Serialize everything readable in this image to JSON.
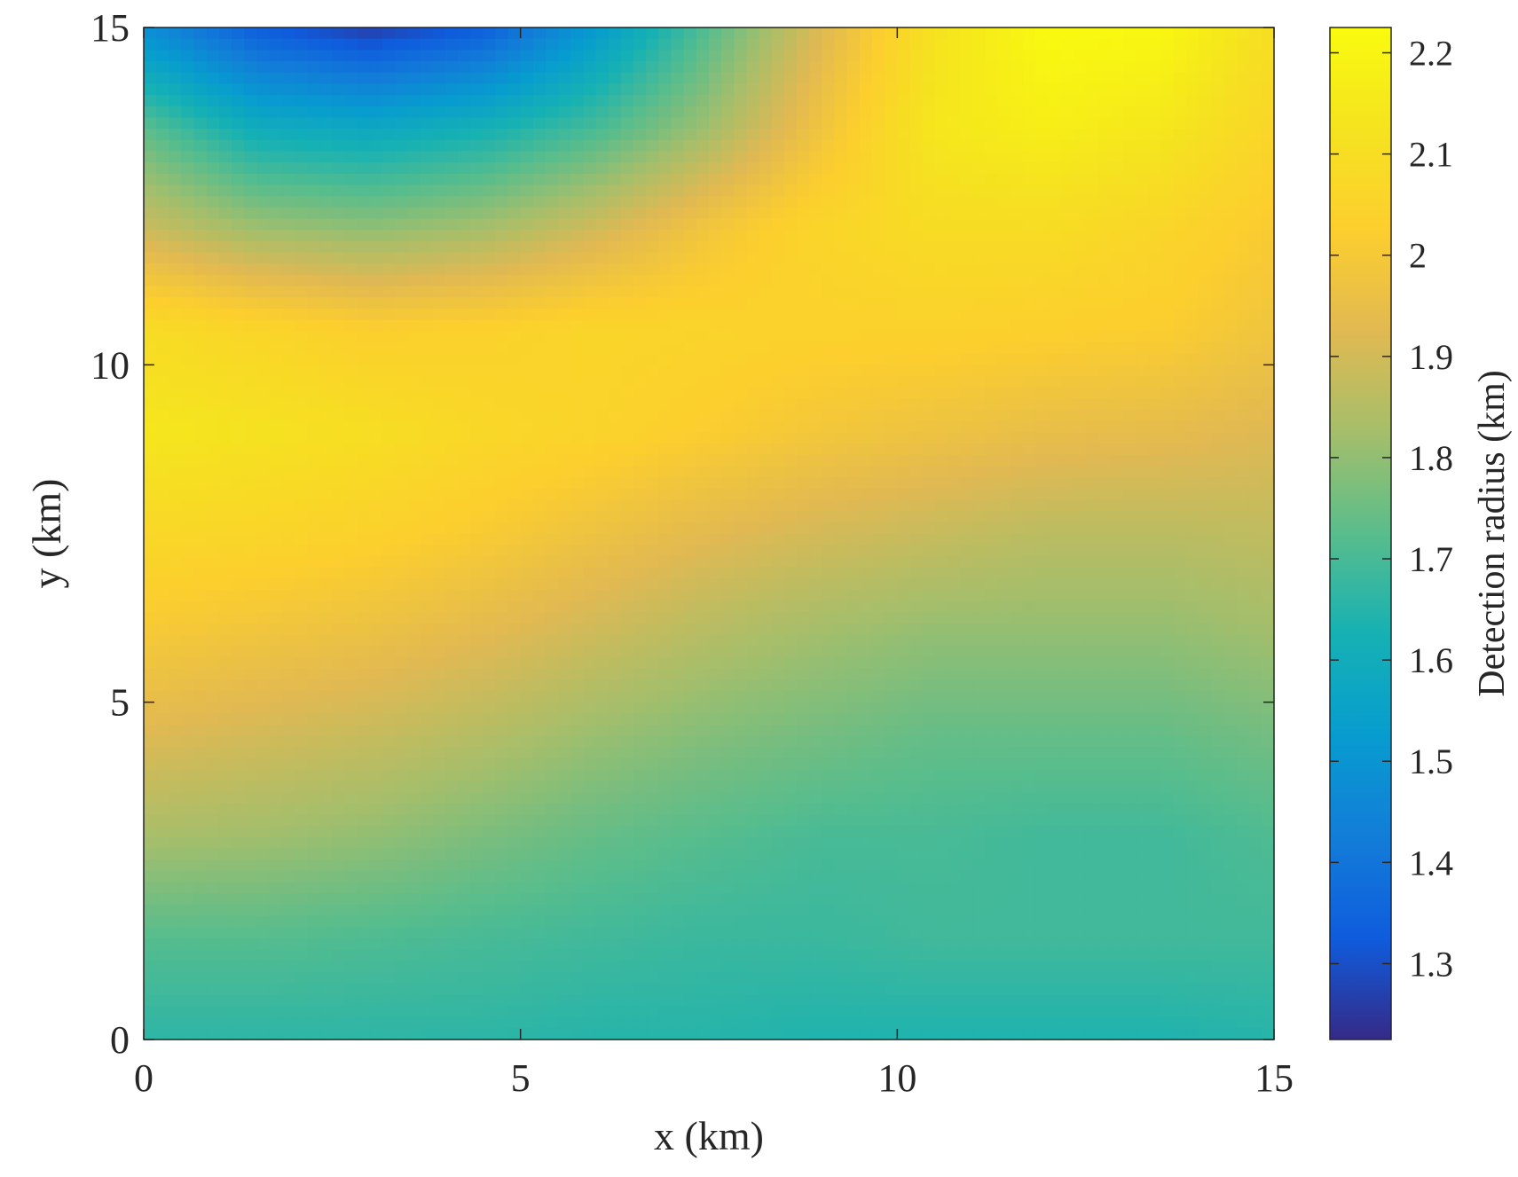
{
  "chart_data": {
    "type": "heatmap",
    "title": "",
    "xlabel": "x (km)",
    "ylabel": "y (km)",
    "xlim": [
      0,
      15
    ],
    "ylim": [
      0,
      15
    ],
    "xticks": [
      0,
      5,
      10,
      15
    ],
    "yticks": [
      0,
      5,
      10,
      15
    ],
    "grid": false,
    "colormap": "parula",
    "colorbar": {
      "label": "Detection radius (km)",
      "range": [
        1.225,
        2.225
      ],
      "ticks": [
        1.3,
        1.4,
        1.5,
        1.6,
        1.7,
        1.8,
        1.9,
        2.0,
        2.1,
        2.2
      ],
      "tick_labels": [
        "1.3",
        "1.4",
        "1.5",
        "1.6",
        "1.7",
        "1.8",
        "1.9",
        "2",
        "2.1",
        "2.2"
      ],
      "placement": "right"
    },
    "grid_x": [
      0,
      1.5,
      3,
      4.5,
      6,
      7.5,
      9,
      10.5,
      12,
      13.5,
      15
    ],
    "grid_y": [
      0,
      1.5,
      3,
      4.5,
      6,
      7.5,
      9,
      10.5,
      12,
      13.5,
      15
    ],
    "values": [
      [
        1.66,
        1.66,
        1.66,
        1.66,
        1.65,
        1.65,
        1.64,
        1.64,
        1.64,
        1.64,
        1.65
      ],
      [
        1.72,
        1.72,
        1.71,
        1.7,
        1.69,
        1.68,
        1.68,
        1.69,
        1.69,
        1.69,
        1.69
      ],
      [
        1.83,
        1.82,
        1.8,
        1.77,
        1.74,
        1.72,
        1.7,
        1.7,
        1.69,
        1.69,
        1.71
      ],
      [
        1.92,
        1.9,
        1.88,
        1.85,
        1.81,
        1.78,
        1.76,
        1.74,
        1.74,
        1.74,
        1.76
      ],
      [
        2.0,
        1.98,
        1.96,
        1.93,
        1.89,
        1.85,
        1.82,
        1.8,
        1.8,
        1.8,
        1.82
      ],
      [
        2.07,
        2.06,
        2.04,
        2.01,
        1.97,
        1.93,
        1.9,
        1.88,
        1.86,
        1.86,
        1.87
      ],
      [
        2.14,
        2.12,
        2.1,
        2.07,
        2.05,
        2.02,
        1.99,
        1.97,
        1.95,
        1.94,
        1.92
      ],
      [
        2.09,
        2.06,
        2.03,
        2.04,
        2.06,
        2.05,
        2.04,
        2.04,
        2.03,
        2.02,
        1.98
      ],
      [
        1.89,
        1.82,
        1.8,
        1.83,
        1.9,
        1.99,
        2.06,
        2.09,
        2.09,
        2.06,
        2.01
      ],
      [
        1.73,
        1.6,
        1.58,
        1.62,
        1.7,
        1.82,
        1.98,
        2.14,
        2.17,
        2.14,
        2.06
      ],
      [
        1.48,
        1.33,
        1.26,
        1.33,
        1.52,
        1.72,
        1.92,
        2.12,
        2.22,
        2.21,
        2.1
      ]
    ]
  }
}
